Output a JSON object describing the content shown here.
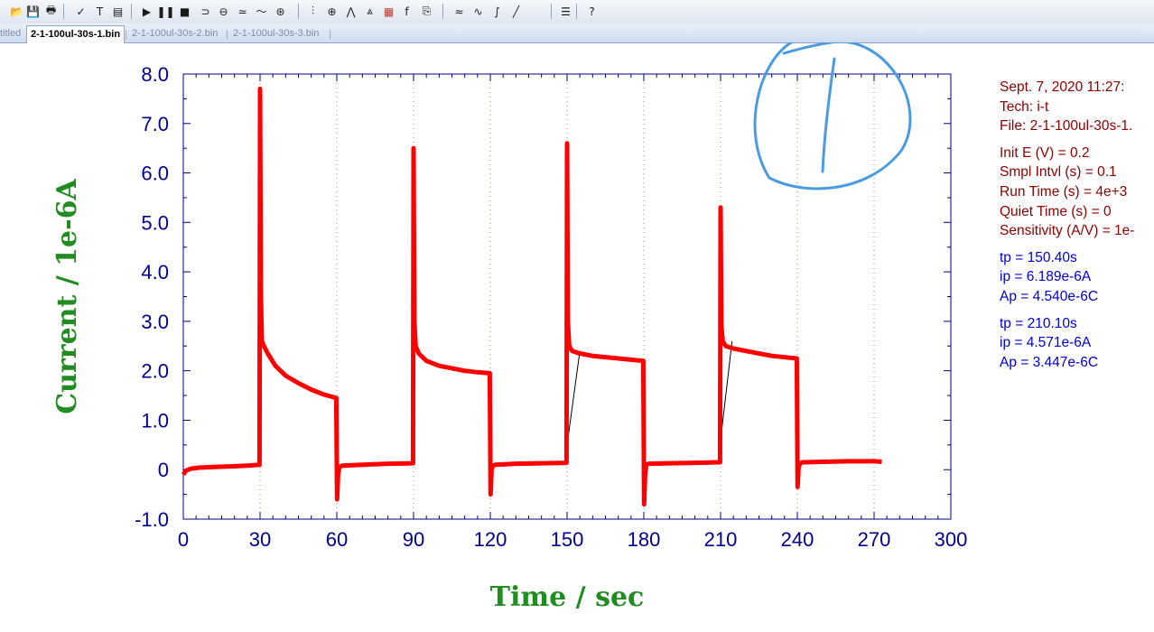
{
  "toolbar": {
    "buttons": [
      "open-icon",
      "save-icon",
      "print-icon",
      "ruler-icon",
      "text-icon",
      "report-icon",
      "run-icon",
      "pause-icon",
      "stop-icon",
      "reverse-icon",
      "ir-comp-icon",
      "filter-icon",
      "smooth-icon",
      "zero-icon",
      "graph-icon",
      "zoom-icon",
      "peak-icon",
      "special-plot-icon",
      "color-icon",
      "font-icon",
      "copy-icon",
      "baseline-icon",
      "derivative-icon",
      "integrate-icon",
      "interpolate-icon",
      "parameters-icon",
      "help-icon"
    ]
  },
  "tabs": [
    {
      "label": "titled",
      "active": false
    },
    {
      "label": "2-1-100ul-30s-1.bin",
      "active": true
    },
    {
      "label": "2-1-100ul-30s-2.bin",
      "active": false
    },
    {
      "label": "2-1-100ul-30s-3.bin",
      "active": false
    }
  ],
  "tab_divider": "|",
  "info": {
    "date_line": "Sept. 7, 2020   11:27:",
    "tech": "Tech: i-t",
    "file": "File: 2-1-100ul-30s-1.",
    "params": [
      "Init E (V) = 0.2",
      "Smpl Intvl (s) = 0.1",
      "Run Time (s) = 4e+3",
      "Quiet Time (s) = 0",
      "Sensitivity (A/V) = 1e-"
    ],
    "peak1": [
      "tp = 150.40s",
      "ip = 6.189e-6A",
      "Ap = 4.540e-6C"
    ],
    "peak2": [
      "tp = 210.10s",
      "ip = 4.571e-6A",
      "Ap = 3.447e-6C"
    ]
  },
  "colors": {
    "trace": "#ff0000",
    "axis_label": "#228b22",
    "tick_label": "#00008b",
    "info_header": "#8b0000",
    "info_peak": "#0000cd",
    "annotation": "#4a9be0",
    "baseline": "#000000"
  },
  "chart_data": {
    "type": "line",
    "xlabel": "Time / sec",
    "ylabel": "Current / 1e-6A",
    "xlim": [
      0,
      300
    ],
    "ylim": [
      -1.0,
      8.0
    ],
    "xticks": [
      "0",
      "30",
      "60",
      "90",
      "120",
      "150",
      "180",
      "210",
      "240",
      "270",
      "300"
    ],
    "yticks": [
      "-1.0",
      "0",
      "1.0",
      "2.0",
      "3.0",
      "4.0",
      "5.0",
      "6.0",
      "7.0",
      "8.0"
    ],
    "grid": "dotted vertical",
    "series": [
      {
        "x": [
          0,
          1,
          3,
          6,
          10,
          15,
          20,
          25,
          29.8,
          30.0,
          30.3,
          30.7,
          31.5,
          33,
          36,
          40,
          45,
          50,
          55,
          59.8,
          60.1,
          60.5,
          61,
          62,
          70,
          80,
          89.8,
          90.0,
          90.3,
          90.8,
          92,
          95,
          100,
          105,
          110,
          115,
          119.8,
          120.1,
          120.5,
          121,
          122,
          130,
          140,
          149.8,
          150.0,
          150.3,
          150.8,
          152,
          155,
          160,
          170,
          179.8,
          180.1,
          180.5,
          181,
          182,
          190,
          200,
          209.8,
          210.0,
          210.3,
          210.8,
          212,
          215,
          220,
          230,
          239.8,
          240.1,
          240.5,
          241,
          242,
          250,
          260,
          270,
          273
        ],
        "y": [
          -0.1,
          -0.02,
          0.02,
          0.04,
          0.05,
          0.06,
          0.07,
          0.08,
          0.1,
          7.7,
          3.5,
          2.6,
          2.5,
          2.35,
          2.1,
          1.9,
          1.75,
          1.62,
          1.52,
          1.45,
          -0.6,
          -0.1,
          0.05,
          0.08,
          0.1,
          0.12,
          0.13,
          6.5,
          3.0,
          2.5,
          2.35,
          2.2,
          2.1,
          2.05,
          2.0,
          1.97,
          1.95,
          -0.5,
          0.0,
          0.08,
          0.1,
          0.12,
          0.13,
          0.14,
          6.6,
          3.0,
          2.5,
          2.4,
          2.35,
          2.3,
          2.25,
          2.2,
          -0.7,
          -0.1,
          0.1,
          0.12,
          0.13,
          0.14,
          0.15,
          5.3,
          2.9,
          2.6,
          2.5,
          2.45,
          2.4,
          2.3,
          2.25,
          -0.35,
          0.05,
          0.12,
          0.15,
          0.16,
          0.17,
          0.17,
          0.16
        ]
      }
    ],
    "baselines": [
      {
        "x": [
          150.0,
          155.0
        ],
        "y": [
          0.5,
          2.4
        ]
      },
      {
        "x": [
          210.0,
          214.5
        ],
        "y": [
          0.6,
          2.6
        ]
      }
    ],
    "annotation": "handwritten circled 1"
  }
}
